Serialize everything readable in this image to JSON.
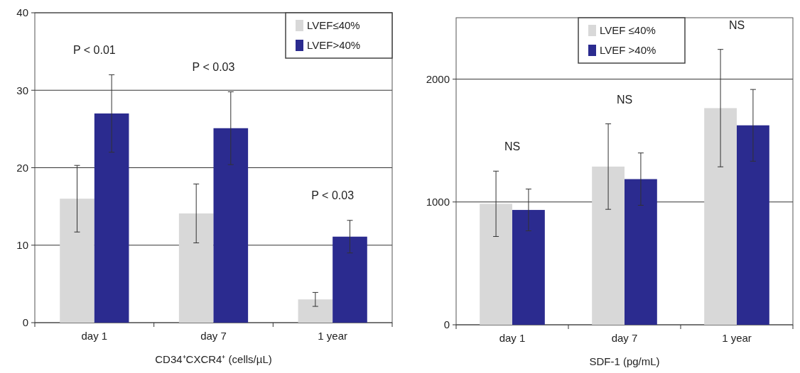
{
  "chart_data": [
    {
      "type": "bar",
      "xlabel": "CD34⁺CXCR4⁺ (cells/µL)",
      "categories": [
        "day 1",
        "day 7",
        "1 year"
      ],
      "series": [
        {
          "name": "LVEF≤40%",
          "color": "#d8d8d8",
          "values": [
            16.0,
            14.1,
            3.0
          ],
          "errors": [
            4.3,
            3.8,
            0.9
          ]
        },
        {
          "name": "LVEF>40%",
          "color": "#2b2b8f",
          "values": [
            27.0,
            25.1,
            11.1
          ],
          "errors": [
            5.0,
            4.7,
            2.1
          ]
        }
      ],
      "ylim": [
        0,
        40
      ],
      "yticks": [
        0,
        10,
        20,
        30,
        40
      ],
      "grid": "y",
      "legend": "top right",
      "annotations": [
        "P < 0.01",
        "P < 0.03",
        "P < 0.03"
      ]
    },
    {
      "type": "bar",
      "xlabel": "SDF-1 (pg/mL)",
      "categories": [
        "day 1",
        "day 7",
        "1 year"
      ],
      "series": [
        {
          "name": "LVEF ≤40%",
          "color": "#d8d8d8",
          "values": [
            985,
            1288,
            1764
          ],
          "errors": [
            266,
            348,
            478
          ]
        },
        {
          "name": "LVEF >40%",
          "color": "#2b2b8f",
          "values": [
            935,
            1186,
            1624
          ],
          "errors": [
            170,
            213,
            292
          ]
        }
      ],
      "ylim": [
        0,
        2500
      ],
      "yticks": [
        0,
        1000,
        2000
      ],
      "grid": "y",
      "legend": "top",
      "annotations": [
        "NS",
        "NS",
        "NS"
      ]
    }
  ]
}
